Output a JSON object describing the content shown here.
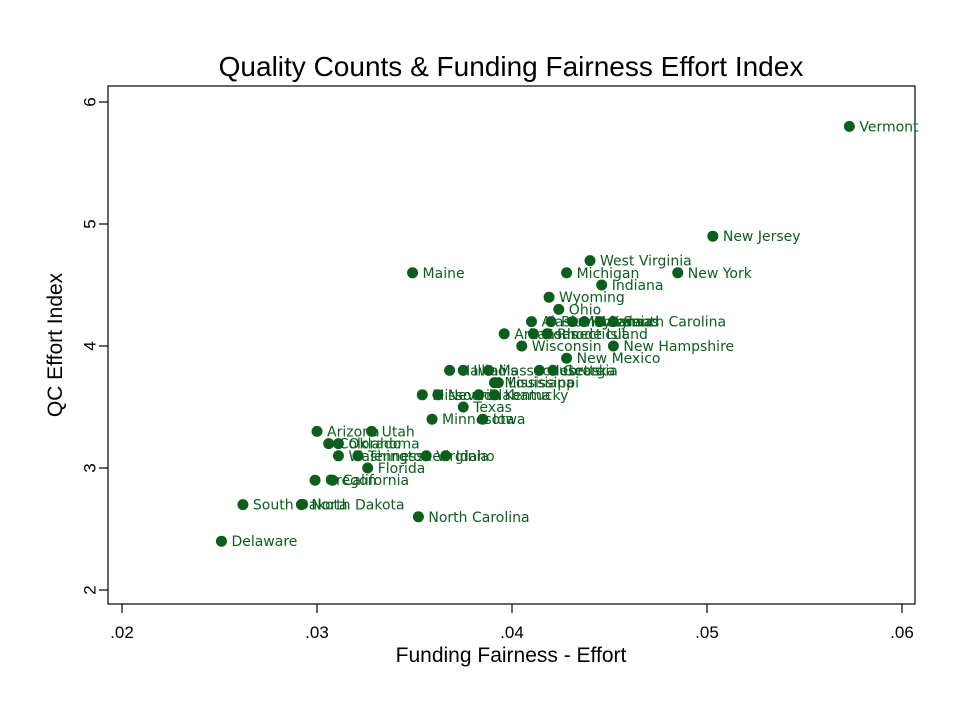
{
  "chart_data": {
    "type": "scatter",
    "title": "Quality Counts & Funding Fairness Effort Index",
    "xlabel": "Funding Fairness - Effort",
    "ylabel": "QC Effort Index",
    "xlim": [
      0.02,
      0.06
    ],
    "ylim": [
      2,
      6
    ],
    "x_ticks": [
      0.02,
      0.03,
      0.04,
      0.05,
      0.06
    ],
    "x_tick_labels": [
      ".02",
      ".03",
      ".04",
      ".05",
      ".06"
    ],
    "y_ticks": [
      2,
      3,
      4,
      5,
      6
    ],
    "y_tick_labels": [
      "2",
      "3",
      "4",
      "5",
      "6"
    ],
    "grid": false,
    "marker_color": "#0b5e1c",
    "label_color": "#0b5e1c",
    "points": [
      {
        "label": "Vermont",
        "x": 0.0573,
        "y": 5.8
      },
      {
        "label": "New Jersey",
        "x": 0.0503,
        "y": 4.9
      },
      {
        "label": "New York",
        "x": 0.0485,
        "y": 4.6
      },
      {
        "label": "West Virginia",
        "x": 0.044,
        "y": 4.7
      },
      {
        "label": "Michigan",
        "x": 0.0428,
        "y": 4.6
      },
      {
        "label": "Maine",
        "x": 0.0349,
        "y": 4.6
      },
      {
        "label": "Indiana",
        "x": 0.0446,
        "y": 4.5
      },
      {
        "label": "Wyoming",
        "x": 0.0419,
        "y": 4.4
      },
      {
        "label": "Ohio",
        "x": 0.0424,
        "y": 4.3
      },
      {
        "label": "South Carolina",
        "x": 0.0452,
        "y": 4.2
      },
      {
        "label": "Pennsylvania",
        "x": 0.042,
        "y": 4.2
      },
      {
        "label": "Maryland",
        "x": 0.0437,
        "y": 4.2
      },
      {
        "label": "Kansas",
        "x": 0.0445,
        "y": 4.2
      },
      {
        "label": "Montana",
        "x": 0.0431,
        "y": 4.2
      },
      {
        "label": "Alaska",
        "x": 0.041,
        "y": 4.2
      },
      {
        "label": "Arkansas",
        "x": 0.0396,
        "y": 4.1
      },
      {
        "label": "Connecticut",
        "x": 0.0411,
        "y": 4.1
      },
      {
        "label": "Rhode Island",
        "x": 0.0418,
        "y": 4.1
      },
      {
        "label": "Wisconsin",
        "x": 0.0405,
        "y": 4.0
      },
      {
        "label": "New Hampshire",
        "x": 0.0452,
        "y": 4.0
      },
      {
        "label": "New Mexico",
        "x": 0.0428,
        "y": 3.9
      },
      {
        "label": "Illinois",
        "x": 0.0375,
        "y": 3.8
      },
      {
        "label": "Massachusetts",
        "x": 0.0388,
        "y": 3.8
      },
      {
        "label": "Georgia",
        "x": 0.0421,
        "y": 3.8
      },
      {
        "label": "Nebraska",
        "x": 0.0414,
        "y": 3.8
      },
      {
        "label": "Hawaii",
        "x": 0.0368,
        "y": 3.8
      },
      {
        "label": "Mississippi",
        "x": 0.0391,
        "y": 3.7
      },
      {
        "label": "Louisiana",
        "x": 0.0393,
        "y": 3.7
      },
      {
        "label": "Missouri",
        "x": 0.0354,
        "y": 3.6
      },
      {
        "label": "Kentucky",
        "x": 0.0391,
        "y": 3.6
      },
      {
        "label": "Alabama",
        "x": 0.0383,
        "y": 3.6
      },
      {
        "label": "Nevada",
        "x": 0.0362,
        "y": 3.6
      },
      {
        "label": "Texas",
        "x": 0.0375,
        "y": 3.5
      },
      {
        "label": "Minnesota",
        "x": 0.0359,
        "y": 3.4
      },
      {
        "label": "Iowa",
        "x": 0.0385,
        "y": 3.4
      },
      {
        "label": "Arizona",
        "x": 0.03,
        "y": 3.3
      },
      {
        "label": "Utah",
        "x": 0.0328,
        "y": 3.3
      },
      {
        "label": "Colorado",
        "x": 0.0306,
        "y": 3.2
      },
      {
        "label": "Oklahoma",
        "x": 0.0311,
        "y": 3.2
      },
      {
        "label": "Washington",
        "x": 0.0311,
        "y": 3.1
      },
      {
        "label": "Tennessee",
        "x": 0.0321,
        "y": 3.1
      },
      {
        "label": "Virginia",
        "x": 0.0356,
        "y": 3.1
      },
      {
        "label": "Idaho",
        "x": 0.0366,
        "y": 3.1
      },
      {
        "label": "Florida",
        "x": 0.0326,
        "y": 3.0
      },
      {
        "label": "Oregon",
        "x": 0.0299,
        "y": 2.9
      },
      {
        "label": "California",
        "x": 0.0308,
        "y": 2.9
      },
      {
        "label": "Delaware",
        "x": 0.0251,
        "y": 2.4
      },
      {
        "label": "South Dakota",
        "x": 0.0262,
        "y": 2.7
      },
      {
        "label": "North Dakota",
        "x": 0.0292,
        "y": 2.7
      },
      {
        "label": "North Carolina",
        "x": 0.0352,
        "y": 2.6
      }
    ]
  }
}
